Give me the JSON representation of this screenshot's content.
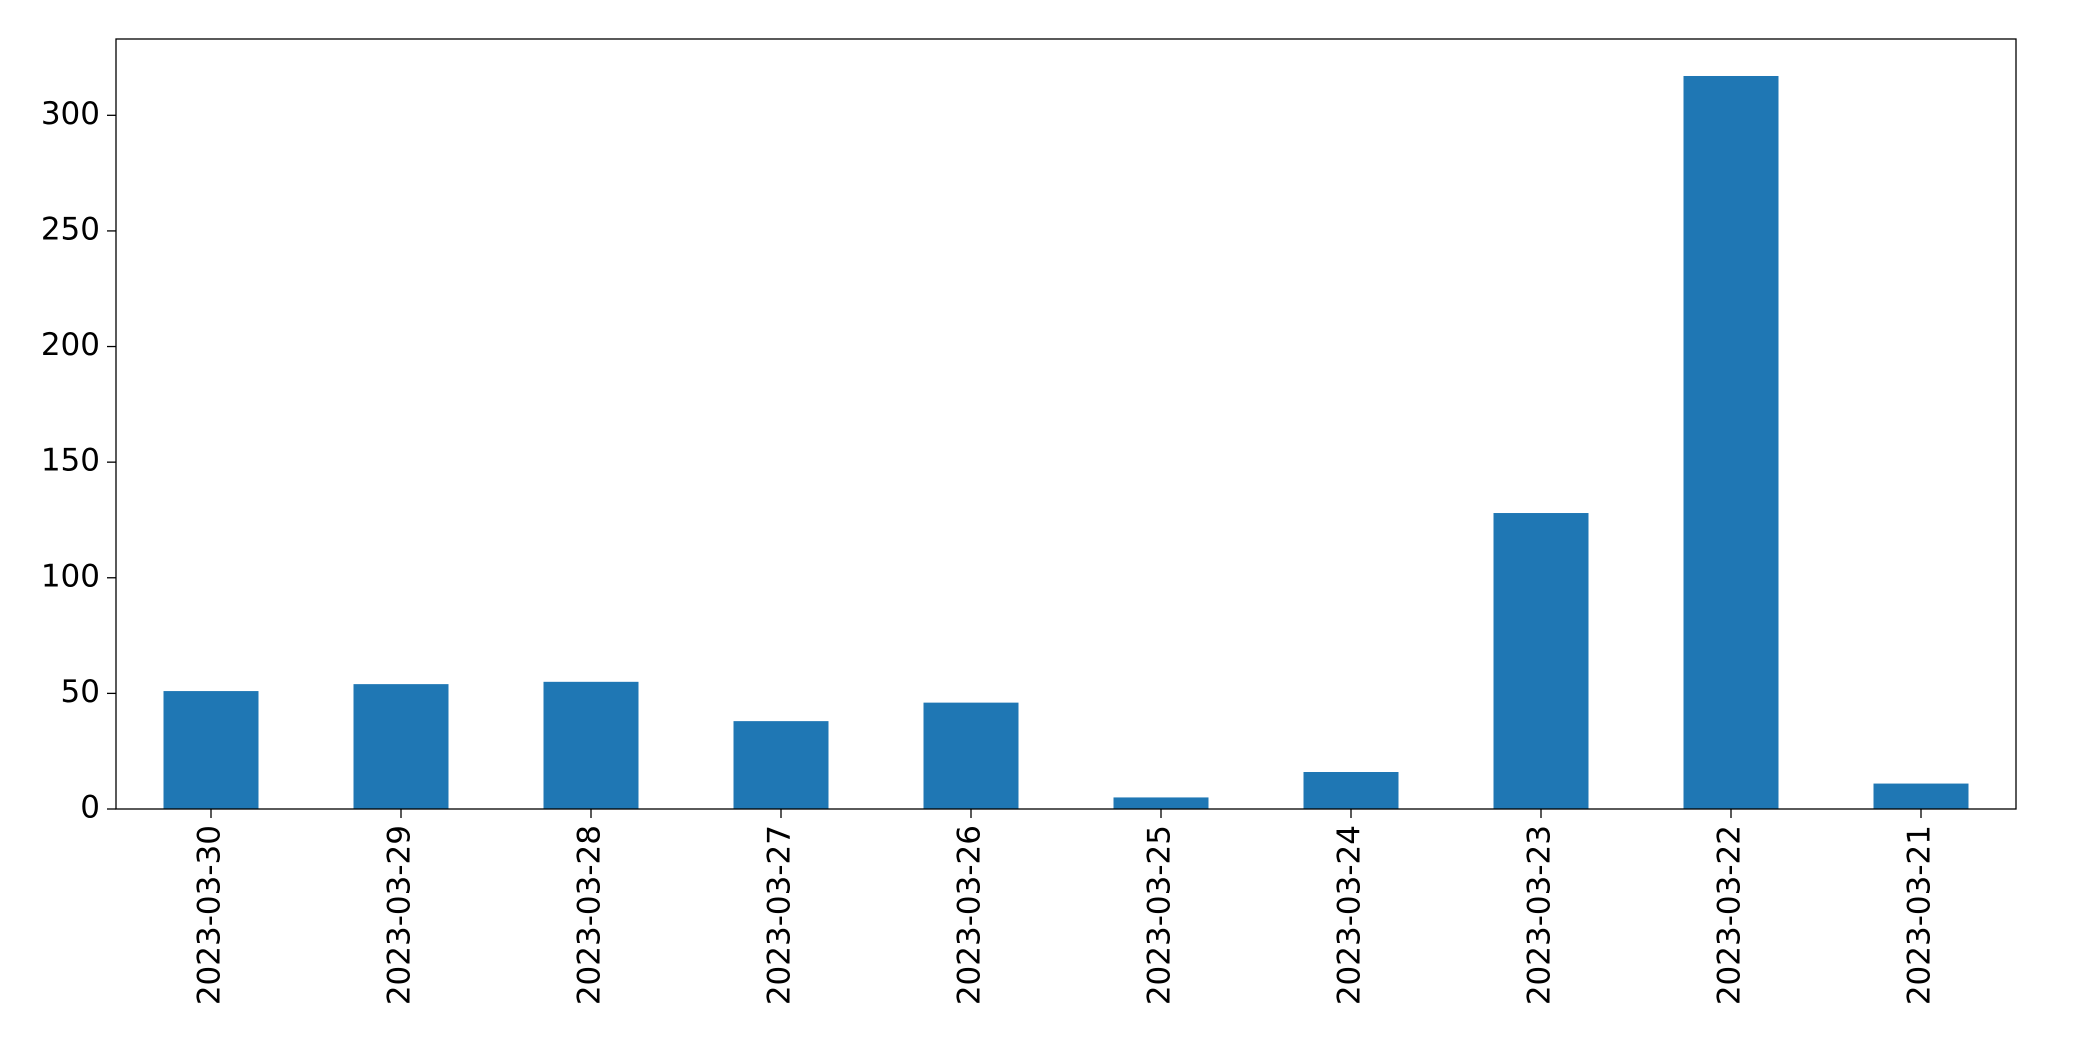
{
  "chart_data": {
    "type": "bar",
    "categories": [
      "2023-03-30",
      "2023-03-29",
      "2023-03-28",
      "2023-03-27",
      "2023-03-26",
      "2023-03-25",
      "2023-03-24",
      "2023-03-23",
      "2023-03-22",
      "2023-03-21"
    ],
    "values": [
      51,
      54,
      55,
      38,
      46,
      5,
      16,
      128,
      317,
      11
    ],
    "color": "#1f77b4",
    "ylim": [
      0,
      333
    ],
    "yticks": [
      0,
      50,
      100,
      150,
      200,
      250,
      300
    ],
    "grid": false
  }
}
